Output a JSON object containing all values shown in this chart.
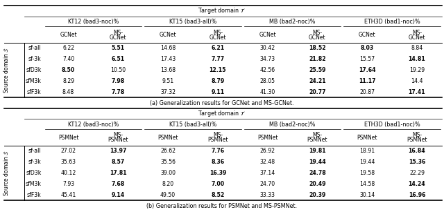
{
  "table_a": {
    "title": "Target domain $\\mathcal{T}$",
    "col_groups": [
      "KT12 (bad3-noc)%",
      "KT15 (bad3-all)%",
      "MB (bad2-noc)%",
      "ETH3D (bad1-noc)%"
    ],
    "col_headers": [
      "GCNet",
      "MS-\nGCNet",
      "GCNet",
      "MS-\nGCNet",
      "GCNet",
      "MS-\nGCNet",
      "GCNet",
      "MS-\nGCNet"
    ],
    "rows": [
      "sf-all",
      "sf-3k",
      "sfD3k",
      "sfM3k",
      "sfF3k"
    ],
    "data": [
      [
        "6.22",
        "5.51",
        "14.68",
        "6.21",
        "30.42",
        "18.52",
        "8.03",
        "8.84"
      ],
      [
        "7.40",
        "6.51",
        "17.43",
        "7.77",
        "34.73",
        "21.82",
        "15.57",
        "14.81"
      ],
      [
        "8.50",
        "10.50",
        "13.68",
        "12.15",
        "42.56",
        "25.59",
        "17.64",
        "19.29"
      ],
      [
        "8.29",
        "7.98",
        "9.51",
        "8.79",
        "28.05",
        "24.21",
        "11.17",
        "14.4"
      ],
      [
        "8.48",
        "7.78",
        "37.32",
        "9.11",
        "41.30",
        "20.77",
        "20.87",
        "17.41"
      ]
    ],
    "bold": [
      [
        false,
        true,
        false,
        true,
        false,
        true,
        true,
        false
      ],
      [
        false,
        true,
        false,
        true,
        false,
        true,
        false,
        true
      ],
      [
        true,
        false,
        false,
        true,
        false,
        true,
        true,
        false
      ],
      [
        false,
        true,
        false,
        true,
        false,
        true,
        true,
        false
      ],
      [
        false,
        true,
        false,
        true,
        false,
        true,
        false,
        true
      ]
    ],
    "caption": "(a) Generalization results for GCNet and MS-GCNet."
  },
  "table_b": {
    "title": "Target domain $\\mathcal{T}$",
    "col_groups": [
      "KT12 (bad3-noc)%",
      "KT15 (bad3-all)%",
      "MB (bad2-noc)%",
      "ETH3D (bad1-noc)%"
    ],
    "col_headers": [
      "PSMNet",
      "MS-\nPSMNet",
      "PSMNet",
      "MS-\nPSMNet",
      "PSMNet",
      "MS-\nPSMNet",
      "PSMNet",
      "MS-\nPSMNet"
    ],
    "rows": [
      "sf-all",
      "sf-3k",
      "sfD3k",
      "sfM3k",
      "sfF3k"
    ],
    "data": [
      [
        "27.02",
        "13.97",
        "26.62",
        "7.76",
        "26.92",
        "19.81",
        "18.91",
        "16.84"
      ],
      [
        "35.63",
        "8.57",
        "35.56",
        "8.36",
        "32.48",
        "19.44",
        "19.44",
        "15.36"
      ],
      [
        "40.12",
        "17.81",
        "39.00",
        "16.39",
        "37.14",
        "24.78",
        "19.58",
        "22.29"
      ],
      [
        "7.93",
        "7.68",
        "8.20",
        "7.00",
        "24.70",
        "20.49",
        "14.58",
        "14.24"
      ],
      [
        "45.41",
        "9.14",
        "49.50",
        "8.52",
        "33.33",
        "20.39",
        "30.14",
        "16.96"
      ]
    ],
    "bold": [
      [
        false,
        true,
        false,
        true,
        false,
        true,
        false,
        true
      ],
      [
        false,
        true,
        false,
        true,
        false,
        true,
        false,
        true
      ],
      [
        false,
        true,
        false,
        true,
        false,
        true,
        false,
        false
      ],
      [
        false,
        true,
        false,
        true,
        false,
        true,
        false,
        true
      ],
      [
        false,
        true,
        false,
        true,
        false,
        true,
        false,
        true
      ]
    ],
    "caption": "(b) Generalization results for PSMNet and MS-PSMNet."
  }
}
